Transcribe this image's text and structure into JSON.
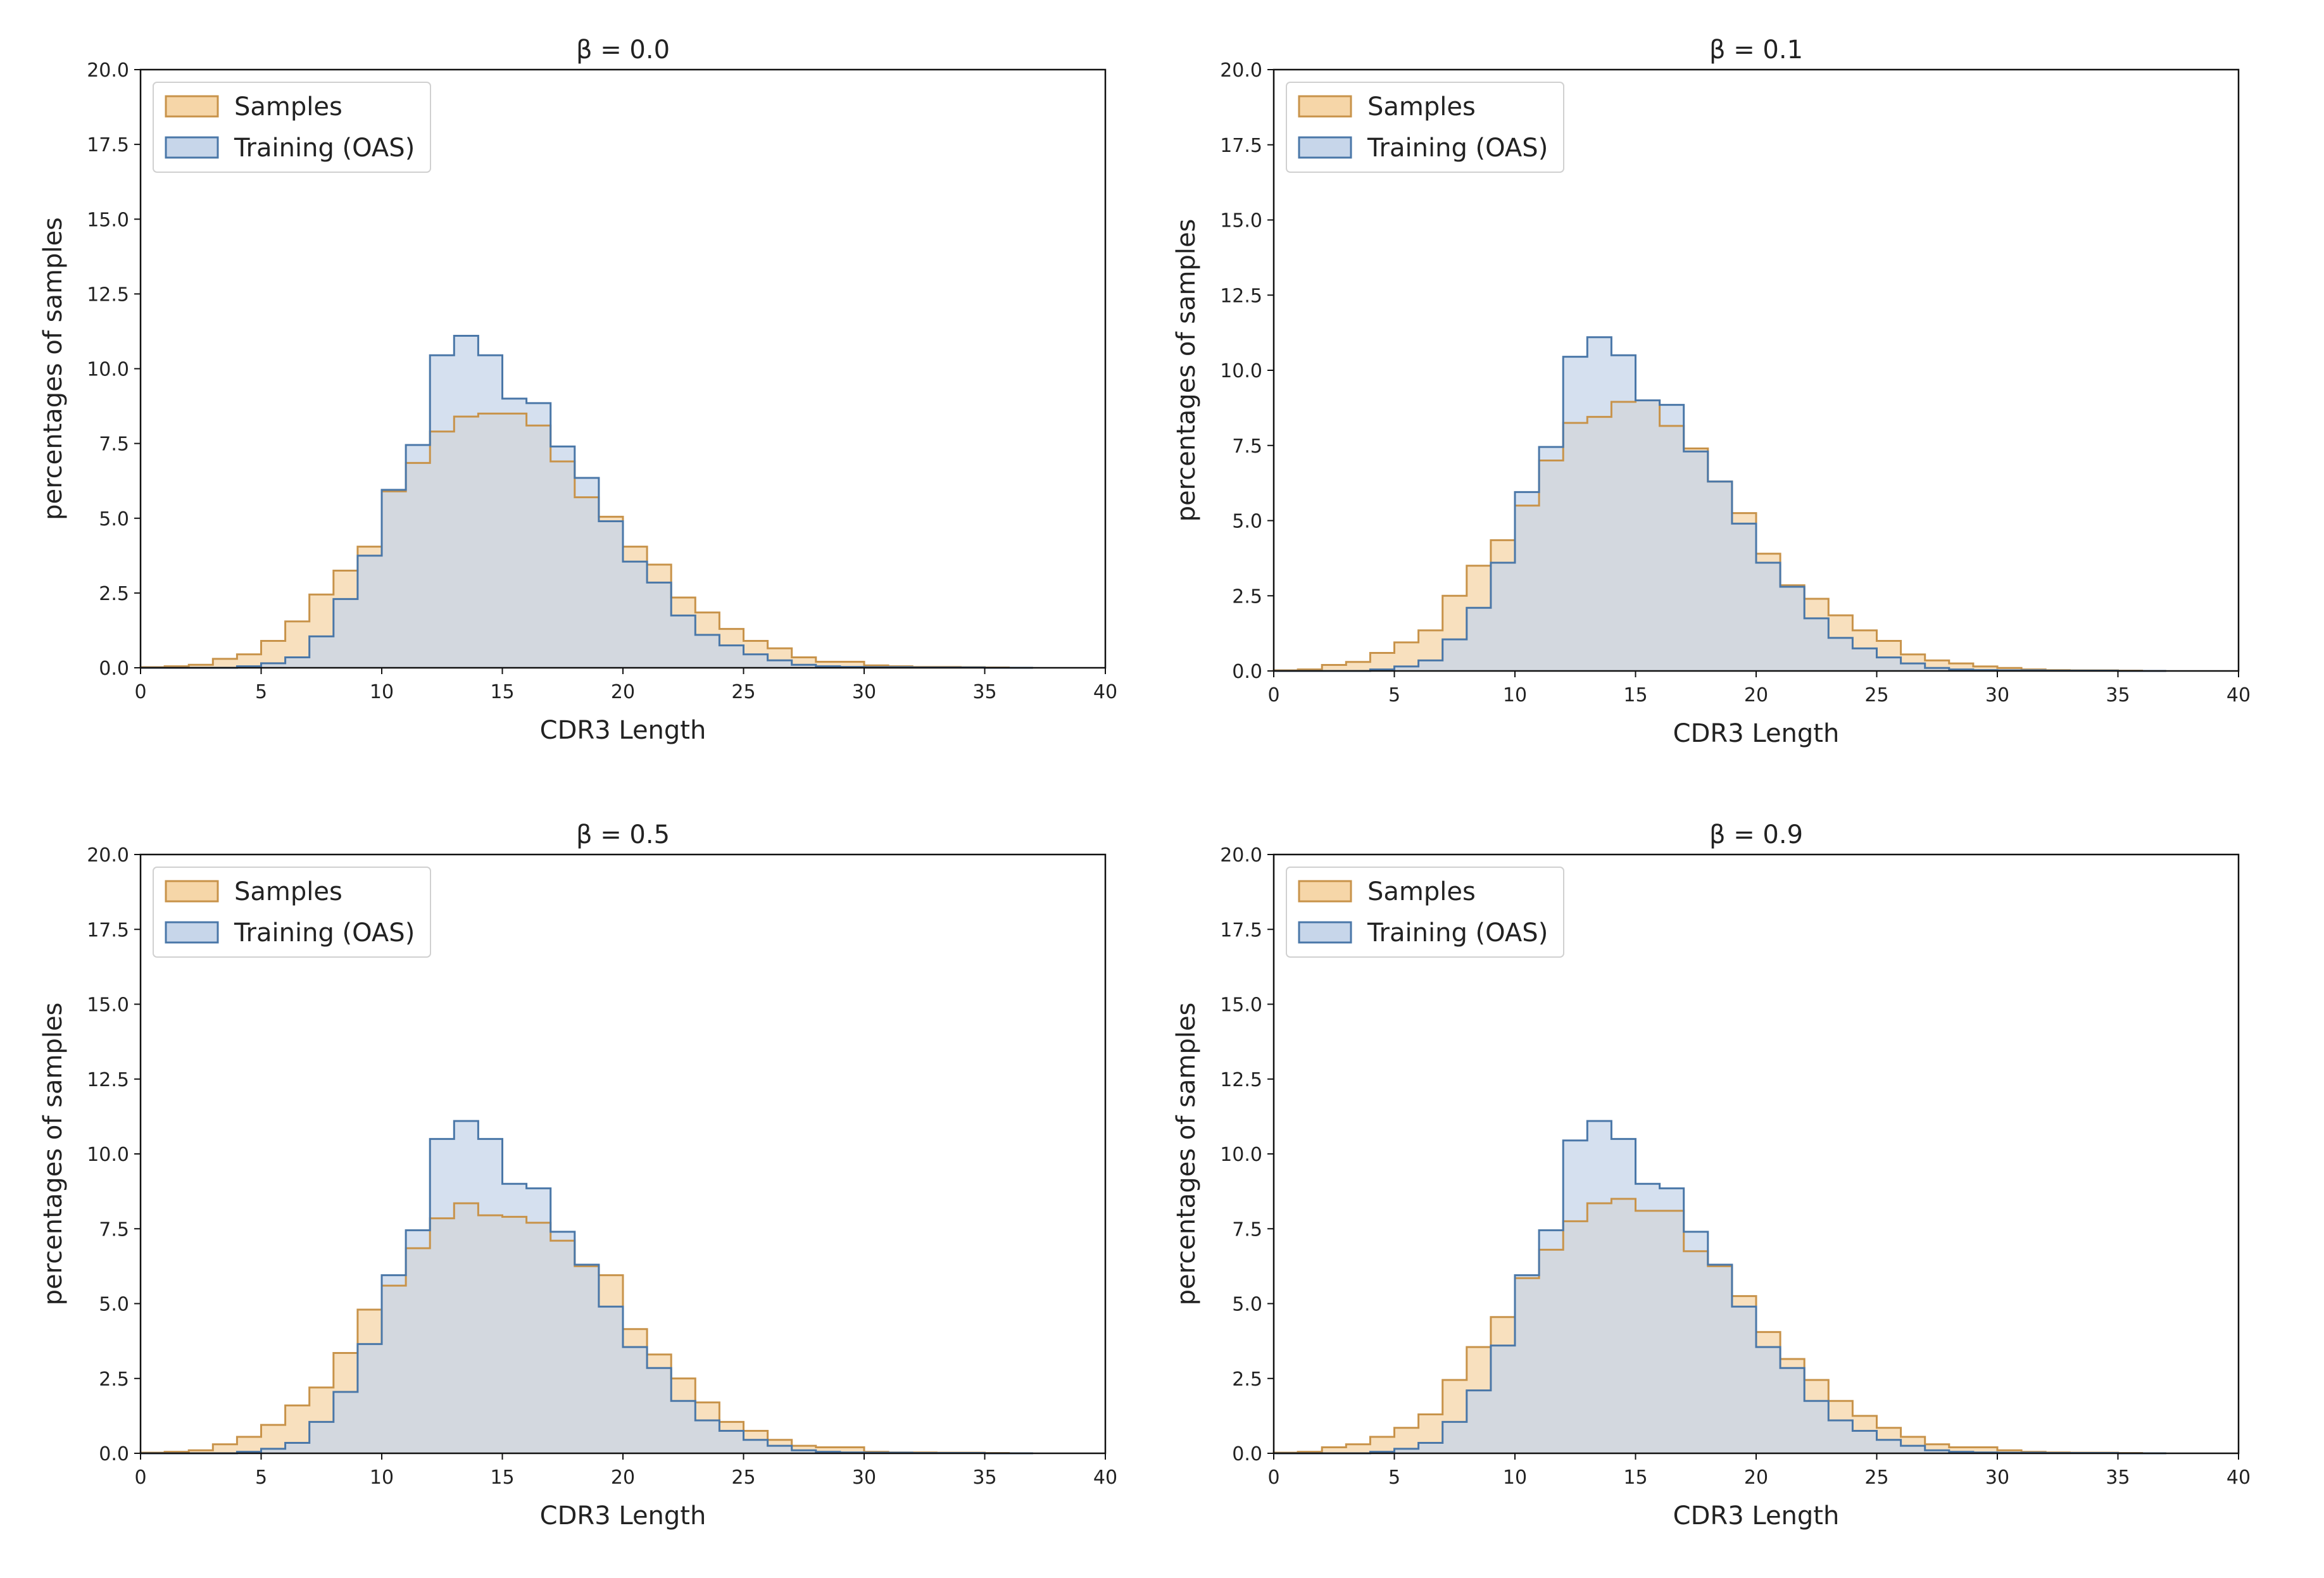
{
  "colors": {
    "samples_fill": "#f6d6a8",
    "samples_edge": "#c8934a",
    "training_fill": "#c7d6ea",
    "training_edge": "#4a77a8"
  },
  "chart_data": [
    {
      "type": "histogram",
      "title": "β = 0.0",
      "xlabel": "CDR3 Length",
      "ylabel": "percentages of samples",
      "xlim": [
        0,
        40
      ],
      "ylim": [
        0,
        20
      ],
      "xticks": [
        "0",
        "5",
        "10",
        "15",
        "20",
        "25",
        "30",
        "35",
        "40"
      ],
      "yticks": [
        "0.0",
        "2.5",
        "5.0",
        "7.5",
        "10.0",
        "12.5",
        "15.0",
        "17.5",
        "20.0"
      ],
      "bin_edges": [
        0,
        1,
        2,
        3,
        4,
        5,
        6,
        7,
        8,
        9,
        10,
        11,
        12,
        13,
        14,
        15,
        16,
        17,
        18,
        19,
        20,
        21,
        22,
        23,
        24,
        25,
        26,
        27,
        28,
        29,
        30,
        31,
        32,
        33,
        34,
        35,
        36,
        37
      ],
      "legend_location": "upper left",
      "series": [
        {
          "name": "Samples",
          "values": [
            0.02,
            0.05,
            0.1,
            0.3,
            0.45,
            0.9,
            1.55,
            2.45,
            3.25,
            4.05,
            5.9,
            6.85,
            7.9,
            8.4,
            8.5,
            8.5,
            8.1,
            6.9,
            5.7,
            5.05,
            4.05,
            3.45,
            2.35,
            1.85,
            1.3,
            0.9,
            0.65,
            0.35,
            0.2,
            0.2,
            0.08,
            0.05,
            0.03,
            0.03,
            0.02,
            0.01,
            0.0
          ]
        },
        {
          "name": "Training (OAS)",
          "values": [
            0.0,
            0.0,
            0.0,
            0.0,
            0.05,
            0.15,
            0.35,
            1.05,
            2.3,
            3.75,
            5.95,
            7.45,
            10.45,
            11.1,
            10.45,
            9.0,
            8.85,
            7.4,
            6.35,
            4.9,
            3.55,
            2.85,
            1.75,
            1.1,
            0.75,
            0.45,
            0.25,
            0.1,
            0.05,
            0.03,
            0.02,
            0.02,
            0.01,
            0.01,
            0.01,
            0.0,
            0.0
          ]
        }
      ]
    },
    {
      "type": "histogram",
      "title": "β = 0.1",
      "xlabel": "CDR3 Length",
      "ylabel": "percentages of samples",
      "xlim": [
        0,
        40
      ],
      "ylim": [
        0,
        20
      ],
      "xticks": [
        "0",
        "5",
        "10",
        "15",
        "20",
        "25",
        "30",
        "35",
        "40"
      ],
      "yticks": [
        "0.0",
        "2.5",
        "5.0",
        "7.5",
        "10.0",
        "12.5",
        "15.0",
        "17.5",
        "20.0"
      ],
      "bin_edges": [
        0,
        1,
        2,
        3,
        4,
        5,
        6,
        7,
        8,
        9,
        10,
        11,
        12,
        13,
        14,
        15,
        16,
        17,
        18,
        19,
        20,
        21,
        22,
        23,
        24,
        25,
        26,
        27,
        28,
        29,
        30,
        31,
        32,
        33,
        34,
        35,
        36,
        37
      ],
      "legend_location": "upper left",
      "series": [
        {
          "name": "Samples",
          "values": [
            0.02,
            0.05,
            0.2,
            0.3,
            0.6,
            0.95,
            1.35,
            2.5,
            3.5,
            4.35,
            5.5,
            7.0,
            8.25,
            8.45,
            8.95,
            9.0,
            8.15,
            7.4,
            6.3,
            5.25,
            3.9,
            2.85,
            2.4,
            1.85,
            1.35,
            1.0,
            0.55,
            0.35,
            0.25,
            0.15,
            0.1,
            0.05,
            0.03,
            0.02,
            0.02,
            0.01,
            0.0
          ]
        },
        {
          "name": "Training (OAS)",
          "values": [
            0.0,
            0.0,
            0.0,
            0.0,
            0.05,
            0.15,
            0.35,
            1.05,
            2.1,
            3.6,
            5.95,
            7.45,
            10.45,
            11.1,
            10.5,
            9.0,
            8.85,
            7.3,
            6.3,
            4.9,
            3.6,
            2.8,
            1.75,
            1.1,
            0.75,
            0.45,
            0.25,
            0.1,
            0.05,
            0.03,
            0.02,
            0.02,
            0.01,
            0.01,
            0.01,
            0.0,
            0.0
          ]
        }
      ]
    },
    {
      "type": "histogram",
      "title": "β = 0.5",
      "xlabel": "CDR3 Length",
      "ylabel": "percentages of samples",
      "xlim": [
        0,
        40
      ],
      "ylim": [
        0,
        20
      ],
      "xticks": [
        "0",
        "5",
        "10",
        "15",
        "20",
        "25",
        "30",
        "35",
        "40"
      ],
      "yticks": [
        "0.0",
        "2.5",
        "5.0",
        "7.5",
        "10.0",
        "12.5",
        "15.0",
        "17.5",
        "20.0"
      ],
      "bin_edges": [
        0,
        1,
        2,
        3,
        4,
        5,
        6,
        7,
        8,
        9,
        10,
        11,
        12,
        13,
        14,
        15,
        16,
        17,
        18,
        19,
        20,
        21,
        22,
        23,
        24,
        25,
        26,
        27,
        28,
        29,
        30,
        31,
        32,
        33,
        34,
        35,
        36,
        37
      ],
      "legend_location": "upper left",
      "series": [
        {
          "name": "Samples",
          "values": [
            0.02,
            0.05,
            0.1,
            0.3,
            0.55,
            0.95,
            1.6,
            2.2,
            3.35,
            4.8,
            5.6,
            6.85,
            7.85,
            8.35,
            7.95,
            7.9,
            7.7,
            7.1,
            6.25,
            5.95,
            4.15,
            3.3,
            2.5,
            1.7,
            1.05,
            0.75,
            0.45,
            0.25,
            0.2,
            0.2,
            0.05,
            0.03,
            0.03,
            0.02,
            0.02,
            0.01,
            0.0
          ]
        },
        {
          "name": "Training (OAS)",
          "values": [
            0.0,
            0.0,
            0.0,
            0.0,
            0.05,
            0.15,
            0.35,
            1.05,
            2.05,
            3.65,
            5.95,
            7.45,
            10.5,
            11.1,
            10.5,
            9.0,
            8.85,
            7.4,
            6.3,
            4.9,
            3.55,
            2.85,
            1.75,
            1.1,
            0.75,
            0.45,
            0.25,
            0.1,
            0.05,
            0.03,
            0.02,
            0.02,
            0.01,
            0.01,
            0.01,
            0.0,
            0.0
          ]
        }
      ]
    },
    {
      "type": "histogram",
      "title": "β = 0.9",
      "xlabel": "CDR3 Length",
      "ylabel": "percentages of samples",
      "xlim": [
        0,
        40
      ],
      "ylim": [
        0,
        20
      ],
      "xticks": [
        "0",
        "5",
        "10",
        "15",
        "20",
        "25",
        "30",
        "35",
        "40"
      ],
      "yticks": [
        "0.0",
        "2.5",
        "5.0",
        "7.5",
        "10.0",
        "12.5",
        "15.0",
        "17.5",
        "20.0"
      ],
      "bin_edges": [
        0,
        1,
        2,
        3,
        4,
        5,
        6,
        7,
        8,
        9,
        10,
        11,
        12,
        13,
        14,
        15,
        16,
        17,
        18,
        19,
        20,
        21,
        22,
        23,
        24,
        25,
        26,
        27,
        28,
        29,
        30,
        31,
        32,
        33,
        34,
        35,
        36,
        37
      ],
      "legend_location": "upper left",
      "series": [
        {
          "name": "Samples",
          "values": [
            0.02,
            0.05,
            0.2,
            0.3,
            0.55,
            0.85,
            1.3,
            2.45,
            3.55,
            4.55,
            5.85,
            6.8,
            7.75,
            8.35,
            8.5,
            8.1,
            8.1,
            6.75,
            6.25,
            5.25,
            4.05,
            3.15,
            2.45,
            1.75,
            1.25,
            0.85,
            0.55,
            0.3,
            0.2,
            0.2,
            0.1,
            0.05,
            0.03,
            0.02,
            0.02,
            0.01,
            0.0
          ]
        },
        {
          "name": "Training (OAS)",
          "values": [
            0.0,
            0.0,
            0.0,
            0.0,
            0.05,
            0.15,
            0.35,
            1.05,
            2.1,
            3.6,
            5.95,
            7.45,
            10.45,
            11.1,
            10.5,
            9.0,
            8.85,
            7.4,
            6.3,
            4.9,
            3.55,
            2.85,
            1.75,
            1.1,
            0.75,
            0.45,
            0.25,
            0.1,
            0.05,
            0.03,
            0.02,
            0.02,
            0.01,
            0.01,
            0.01,
            0.0,
            0.0
          ]
        }
      ]
    }
  ]
}
